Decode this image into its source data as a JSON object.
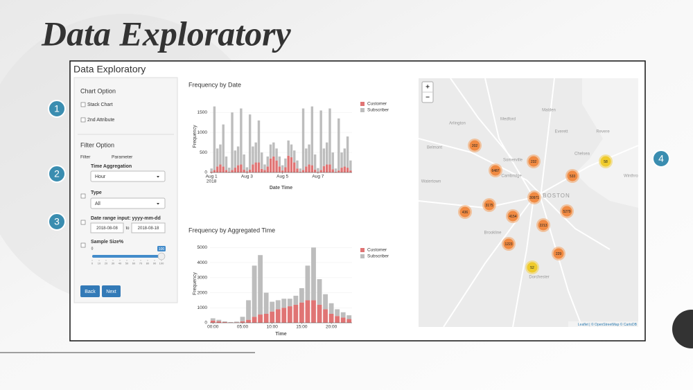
{
  "slide": {
    "title": "Data Exploratory",
    "callouts": [
      "1",
      "2",
      "3",
      "4"
    ]
  },
  "app": {
    "title": "Data Exploratory",
    "sidebar": {
      "chart_option": {
        "heading": "Chart Option",
        "checkboxes": [
          "Stack Chart",
          "2nd Attribute"
        ]
      },
      "filter_option": {
        "heading": "Filter Option",
        "column_filter": "Filter",
        "column_parameter": "Parameter",
        "time_aggregation": {
          "label": "Time Aggregation",
          "value": "Hour"
        },
        "type": {
          "label": "Type",
          "value": "All"
        },
        "date_range": {
          "label": "Date range input: yyyy-mm-dd",
          "start": "2018-08-08",
          "separator": "to",
          "end": "2018-08-18"
        },
        "sample_size": {
          "label": "Sample Size%",
          "min": 0,
          "max": 100,
          "value": 100,
          "ticks": [
            0,
            10,
            20,
            30,
            40,
            50,
            60,
            70,
            80,
            90,
            100
          ]
        }
      },
      "buttons": [
        "Back",
        "Next"
      ]
    }
  },
  "chart_data": [
    {
      "type": "bar",
      "stacked": true,
      "title": "Frequency by Date",
      "x_label": "Date Time",
      "y_label": "Frequency",
      "x_sublabel": "2018",
      "categories": [
        "Aug 1",
        null,
        null,
        null,
        null,
        null,
        null,
        null,
        null,
        null,
        null,
        null,
        "Aug 3",
        null,
        null,
        null,
        null,
        null,
        null,
        null,
        null,
        null,
        null,
        null,
        "Aug 5",
        null,
        null,
        null,
        null,
        null,
        null,
        null,
        null,
        null,
        null,
        null,
        "Aug 7",
        null,
        null,
        null,
        null,
        null,
        null,
        null,
        null,
        null,
        null,
        null
      ],
      "series": [
        {
          "name": "Customer",
          "color": "#e07474",
          "values": [
            20,
            60,
            150,
            200,
            150,
            60,
            20,
            60,
            120,
            180,
            200,
            70,
            30,
            70,
            200,
            250,
            250,
            90,
            60,
            150,
            350,
            400,
            300,
            150,
            50,
            130,
            420,
            380,
            250,
            100,
            20,
            60,
            150,
            200,
            180,
            70,
            20,
            60,
            160,
            200,
            200,
            80,
            20,
            50,
            120,
            150,
            120,
            50
          ]
        },
        {
          "name": "Subscriber",
          "color": "#bdbdbd",
          "values": [
            80,
            1590,
            450,
            500,
            1050,
            340,
            100,
            1440,
            430,
            470,
            1400,
            380,
            100,
            1380,
            450,
            500,
            1050,
            410,
            140,
            250,
            350,
            350,
            300,
            250,
            130,
            220,
            380,
            320,
            300,
            200,
            80,
            1540,
            450,
            500,
            1470,
            380,
            90,
            1490,
            440,
            550,
            1400,
            420,
            80,
            1300,
            380,
            450,
            780,
            250
          ]
        }
      ],
      "ylim": [
        0,
        1800
      ],
      "yticks": [
        0,
        500,
        1000,
        1500
      ],
      "legend": "top-right"
    },
    {
      "type": "bar",
      "stacked": true,
      "title": "Frequency by Aggregated Time",
      "x_label": "Time",
      "y_label": "Frequency",
      "categories": [
        "00:00",
        null,
        null,
        null,
        null,
        "05:00",
        null,
        null,
        null,
        null,
        "10:00",
        null,
        null,
        null,
        null,
        "15:00",
        null,
        null,
        null,
        null,
        "20:00",
        null,
        null,
        null
      ],
      "series": [
        {
          "name": "Customer",
          "color": "#e07474",
          "values": [
            150,
            100,
            50,
            20,
            30,
            100,
            200,
            400,
            550,
            600,
            750,
            900,
            1000,
            1100,
            1200,
            1350,
            1500,
            1500,
            1200,
            900,
            600,
            450,
            350,
            250
          ]
        },
        {
          "name": "Subscriber",
          "color": "#bdbdbd",
          "values": [
            150,
            100,
            50,
            30,
            50,
            300,
            1300,
            3400,
            3950,
            1400,
            650,
            600,
            600,
            500,
            600,
            950,
            2300,
            3500,
            1700,
            1000,
            700,
            450,
            350,
            250
          ]
        }
      ],
      "ylim": [
        0,
        5200
      ],
      "yticks": [
        0,
        1000,
        2000,
        3000,
        4000,
        5000
      ],
      "legend": "top-right"
    }
  ],
  "map": {
    "zoom_in": "+",
    "zoom_out": "−",
    "places": [
      "Arlington",
      "Medford",
      "Malden",
      "Everett",
      "Revere",
      "Somerville",
      "Belmont",
      "Cambridge",
      "Chelsea",
      "Watertown",
      "BOSTON",
      "Winthrop",
      "Brookline",
      "Dorchester"
    ],
    "clusters": [
      "202",
      "6487",
      "232",
      "58",
      "533",
      "30971",
      "3175",
      "436",
      "4154",
      "5279",
      "2213",
      "1223",
      "229",
      "52"
    ],
    "attribution": "Leaflet | © OpenStreetMap © CartoDB"
  }
}
